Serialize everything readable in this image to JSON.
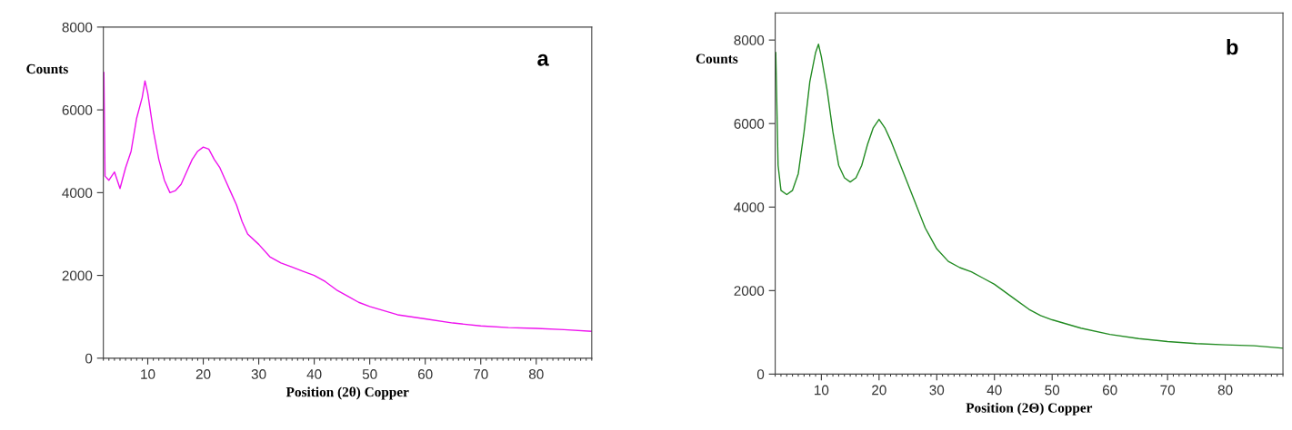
{
  "chart_data": [
    {
      "type": "line",
      "xlabel": "Position (2θ) Copper",
      "ylabel": "Counts",
      "annotations": [
        "a"
      ],
      "xlim": [
        2,
        90
      ],
      "ylim": [
        0,
        8000
      ],
      "xticks": [
        10,
        20,
        30,
        40,
        50,
        60,
        70,
        80
      ],
      "yticks": [
        0,
        2000,
        4000,
        6000,
        8000
      ],
      "grid": false,
      "x": [
        2.1,
        2.3,
        3,
        4,
        5,
        6,
        7,
        8,
        9,
        9.5,
        10,
        11,
        12,
        13,
        14,
        15,
        16,
        17,
        18,
        19,
        20,
        21,
        22,
        23,
        24,
        25,
        26,
        27,
        28,
        30,
        32,
        34,
        36,
        38,
        40,
        42,
        44,
        46,
        48,
        50,
        55,
        60,
        65,
        70,
        75,
        80,
        85,
        90
      ],
      "series": [
        {
          "color": "#ee11ee",
          "values": [
            6900,
            4400,
            4300,
            4500,
            4100,
            4600,
            5000,
            5800,
            6300,
            6700,
            6400,
            5500,
            4800,
            4300,
            4000,
            4050,
            4200,
            4500,
            4800,
            5000,
            5100,
            5050,
            4800,
            4600,
            4300,
            4000,
            3700,
            3300,
            3000,
            2750,
            2450,
            2300,
            2200,
            2100,
            2000,
            1850,
            1650,
            1500,
            1350,
            1250,
            1050,
            950,
            850,
            780,
            740,
            720,
            690,
            650
          ]
        }
      ]
    },
    {
      "type": "line",
      "xlabel": "Position (2Θ) Copper",
      "ylabel": "Counts",
      "annotations": [
        "b"
      ],
      "xlim": [
        2,
        90
      ],
      "ylim": [
        0,
        8650
      ],
      "xticks": [
        10,
        20,
        30,
        40,
        50,
        60,
        70,
        80
      ],
      "yticks": [
        0,
        2000,
        4000,
        6000,
        8000
      ],
      "grid": false,
      "x": [
        2.1,
        2.5,
        3,
        4,
        5,
        6,
        7,
        8,
        9,
        9.5,
        10,
        11,
        12,
        13,
        14,
        15,
        16,
        17,
        18,
        19,
        20,
        21,
        22,
        24,
        26,
        28,
        30,
        32,
        34,
        36,
        38,
        40,
        42,
        44,
        46,
        48,
        50,
        55,
        60,
        65,
        70,
        75,
        80,
        85,
        90
      ],
      "series": [
        {
          "color": "#228b22",
          "values": [
            7700,
            5000,
            4400,
            4300,
            4400,
            4800,
            5800,
            7000,
            7700,
            7900,
            7600,
            6800,
            5800,
            5000,
            4700,
            4600,
            4700,
            5000,
            5500,
            5900,
            6100,
            5900,
            5600,
            4900,
            4200,
            3500,
            3000,
            2700,
            2550,
            2450,
            2300,
            2150,
            1950,
            1750,
            1550,
            1400,
            1300,
            1100,
            950,
            850,
            780,
            730,
            700,
            680,
            620
          ]
        }
      ]
    }
  ]
}
